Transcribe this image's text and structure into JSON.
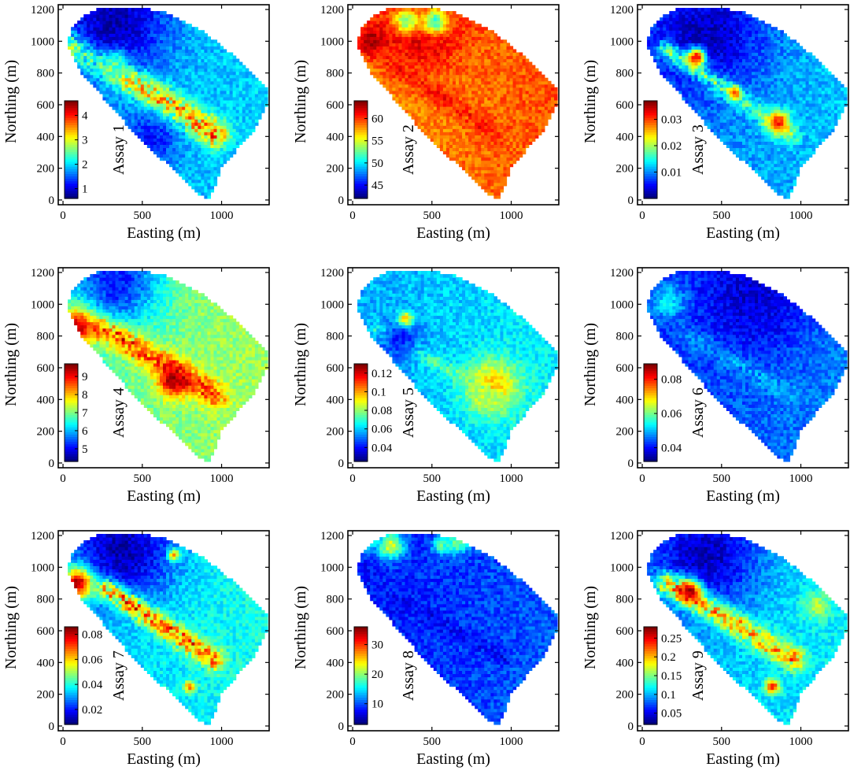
{
  "figure": {
    "xlabel": "Easting (m)",
    "ylabel": "Northing (m)",
    "xticks": [
      0,
      500,
      1000
    ],
    "yticks": [
      0,
      200,
      400,
      600,
      800,
      1000,
      1200
    ],
    "xlim": [
      -30,
      1300
    ],
    "ylim": [
      -30,
      1230
    ],
    "colormap": "jet",
    "grid": false
  },
  "chart_data": [
    {
      "type": "heatmap",
      "title": "",
      "xlabel": "Easting (m)",
      "ylabel": "Northing (m)",
      "colorbar_label": "Assay 1",
      "colorbar_ticks": [
        "1",
        "2",
        "3",
        "4"
      ],
      "clim": [
        0.6,
        4.6
      ],
      "background_level": 0.3,
      "features": [
        {
          "type": "vein",
          "from": [
            60,
            980
          ],
          "to": [
            960,
            420
          ],
          "level": 0.95,
          "width": 60
        },
        {
          "type": "hotspot",
          "at": [
            330,
            900
          ],
          "level": 0.9,
          "radius": 50
        },
        {
          "type": "lowzone",
          "at": [
            330,
            1130
          ],
          "level": 0.05,
          "radius": 220
        },
        {
          "type": "lowzone",
          "at": [
            560,
            390
          ],
          "level": 0.15,
          "radius": 120
        }
      ]
    },
    {
      "type": "heatmap",
      "title": "",
      "xlabel": "Easting (m)",
      "ylabel": "Northing (m)",
      "colorbar_label": "Assay 2",
      "colorbar_ticks": [
        "45",
        "50",
        "55",
        "60"
      ],
      "clim": [
        42,
        64
      ],
      "background_level": 0.76,
      "features": [
        {
          "type": "hotspot",
          "at": [
            430,
            1110
          ],
          "level": 0.97,
          "radius": 180
        },
        {
          "type": "hotspot",
          "at": [
            120,
            1010
          ],
          "level": 0.95,
          "radius": 80
        },
        {
          "type": "vein",
          "from": [
            250,
            850
          ],
          "to": [
            900,
            420
          ],
          "level": 0.88,
          "width": 45
        },
        {
          "type": "lowzone",
          "at": [
            520,
            1130
          ],
          "level": 0.42,
          "radius": 60
        },
        {
          "type": "lowzone",
          "at": [
            340,
            1130
          ],
          "level": 0.5,
          "radius": 60
        }
      ]
    },
    {
      "type": "heatmap",
      "title": "",
      "xlabel": "Easting (m)",
      "ylabel": "Northing (m)",
      "colorbar_label": "Assay 3",
      "colorbar_ticks": [
        "0.01",
        "0.02",
        "0.03"
      ],
      "clim": [
        0.0,
        0.037
      ],
      "background_level": 0.28,
      "features": [
        {
          "type": "lowzone",
          "at": [
            400,
            1050
          ],
          "level": 0.06,
          "radius": 260
        },
        {
          "type": "vein",
          "from": [
            150,
            950
          ],
          "to": [
            940,
            410
          ],
          "level": 0.55,
          "width": 40
        },
        {
          "type": "hotspot",
          "at": [
            340,
            900
          ],
          "level": 0.9,
          "radius": 40
        },
        {
          "type": "hotspot",
          "at": [
            580,
            680
          ],
          "level": 0.8,
          "radius": 30
        },
        {
          "type": "hotspot",
          "at": [
            860,
            490
          ],
          "level": 0.85,
          "radius": 50
        }
      ]
    },
    {
      "type": "heatmap",
      "title": "",
      "xlabel": "Easting (m)",
      "ylabel": "Northing (m)",
      "colorbar_label": "Assay 4",
      "colorbar_ticks": [
        "5",
        "6",
        "7",
        "8",
        "9"
      ],
      "clim": [
        4.3,
        9.7
      ],
      "background_level": 0.5,
      "features": [
        {
          "type": "lowzone",
          "at": [
            330,
            1140
          ],
          "level": 0.15,
          "radius": 200
        },
        {
          "type": "hotspot",
          "at": [
            90,
            860
          ],
          "level": 0.93,
          "radius": 80
        },
        {
          "type": "vein",
          "from": [
            250,
            850
          ],
          "to": [
            960,
            430
          ],
          "level": 0.94,
          "width": 55
        },
        {
          "type": "hotspot",
          "at": [
            700,
            520
          ],
          "level": 0.97,
          "radius": 70
        }
      ]
    },
    {
      "type": "heatmap",
      "title": "",
      "xlabel": "Easting (m)",
      "ylabel": "Northing (m)",
      "colorbar_label": "Assay 5",
      "colorbar_ticks": [
        "0.04",
        "0.06",
        "0.08",
        "0.1",
        "0.12"
      ],
      "clim": [
        0.025,
        0.13
      ],
      "background_level": 0.33,
      "features": [
        {
          "type": "hotspot",
          "at": [
            330,
            900
          ],
          "level": 0.95,
          "radius": 35
        },
        {
          "type": "hotspot",
          "at": [
            880,
            480
          ],
          "level": 0.7,
          "radius": 120
        },
        {
          "type": "vein",
          "from": [
            150,
            850
          ],
          "to": [
            900,
            420
          ],
          "level": 0.5,
          "width": 35
        },
        {
          "type": "lowzone",
          "at": [
            300,
            780
          ],
          "level": 0.15,
          "radius": 90
        }
      ]
    },
    {
      "type": "heatmap",
      "title": "",
      "xlabel": "Easting (m)",
      "ylabel": "Northing (m)",
      "colorbar_label": "Assay 6",
      "colorbar_ticks": [
        "0.04",
        "0.06",
        "0.08"
      ],
      "clim": [
        0.032,
        0.089
      ],
      "background_level": 0.22,
      "features": [
        {
          "type": "lowzone",
          "at": [
            700,
            1050
          ],
          "level": 0.08,
          "radius": 260
        },
        {
          "type": "vein",
          "from": [
            300,
            800
          ],
          "to": [
            950,
            420
          ],
          "level": 0.32,
          "width": 40
        },
        {
          "type": "hotspot",
          "at": [
            160,
            1020
          ],
          "level": 0.35,
          "radius": 80
        }
      ]
    },
    {
      "type": "heatmap",
      "title": "",
      "xlabel": "Easting (m)",
      "ylabel": "Northing (m)",
      "colorbar_label": "Assay 7",
      "colorbar_ticks": [
        "0.02",
        "0.04",
        "0.06",
        "0.08"
      ],
      "clim": [
        0.008,
        0.086
      ],
      "background_level": 0.36,
      "features": [
        {
          "type": "lowzone",
          "at": [
            380,
            1110
          ],
          "level": 0.05,
          "radius": 230
        },
        {
          "type": "hotspot",
          "at": [
            90,
            900
          ],
          "level": 0.96,
          "radius": 70
        },
        {
          "type": "vein",
          "from": [
            280,
            860
          ],
          "to": [
            960,
            420
          ],
          "level": 0.93,
          "width": 45
        },
        {
          "type": "hotspot",
          "at": [
            800,
            250
          ],
          "level": 0.8,
          "radius": 25
        },
        {
          "type": "hotspot",
          "at": [
            700,
            1080
          ],
          "level": 0.75,
          "radius": 25
        }
      ]
    },
    {
      "type": "heatmap",
      "title": "",
      "xlabel": "Easting (m)",
      "ylabel": "Northing (m)",
      "colorbar_label": "Assay 8",
      "colorbar_ticks": [
        "10",
        "20",
        "30"
      ],
      "clim": [
        3,
        36
      ],
      "background_level": 0.18,
      "features": [
        {
          "type": "hotspot",
          "at": [
            240,
            1140
          ],
          "level": 0.6,
          "radius": 60
        },
        {
          "type": "hotspot",
          "at": [
            660,
            1160
          ],
          "level": 0.5,
          "radius": 50
        },
        {
          "type": "hotspot",
          "at": [
            560,
            1140
          ],
          "level": 0.45,
          "radius": 40
        },
        {
          "type": "hotspot",
          "at": [
            90,
            1160
          ],
          "level": 0.4,
          "radius": 40
        },
        {
          "type": "vein",
          "from": [
            300,
            800
          ],
          "to": [
            950,
            430
          ],
          "level": 0.1,
          "width": 35
        }
      ]
    },
    {
      "type": "heatmap",
      "title": "",
      "xlabel": "Easting (m)",
      "ylabel": "Northing (m)",
      "colorbar_label": "Assay 9",
      "colorbar_ticks": [
        "0.05",
        "0.1",
        "0.15",
        "0.2",
        "0.25"
      ],
      "clim": [
        0.02,
        0.28
      ],
      "background_level": 0.33,
      "features": [
        {
          "type": "lowzone",
          "at": [
            400,
            1080
          ],
          "level": 0.06,
          "radius": 240
        },
        {
          "type": "vein",
          "from": [
            160,
            900
          ],
          "to": [
            960,
            420
          ],
          "level": 0.85,
          "width": 50
        },
        {
          "type": "hotspot",
          "at": [
            300,
            850
          ],
          "level": 0.95,
          "radius": 50
        },
        {
          "type": "hotspot",
          "at": [
            820,
            250
          ],
          "level": 0.9,
          "radius": 30
        },
        {
          "type": "hotspot",
          "at": [
            1100,
            760
          ],
          "level": 0.55,
          "radius": 60
        }
      ]
    }
  ]
}
